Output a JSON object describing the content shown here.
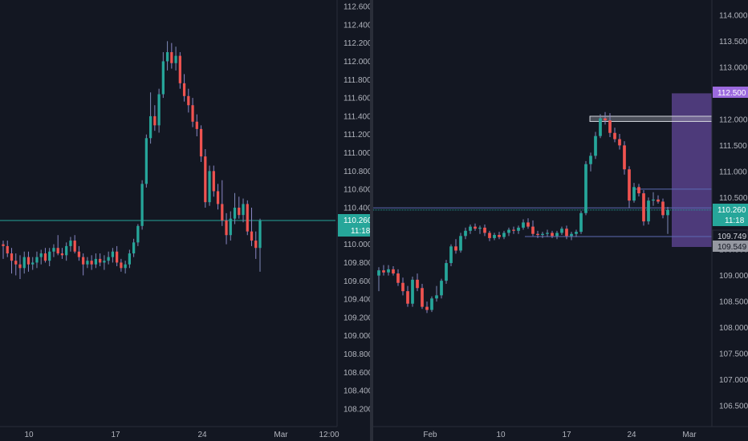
{
  "colors": {
    "background": "#131722",
    "axis_text": "#b2b5be",
    "divider": "#2a2e39",
    "up": "#26a69a",
    "down": "#ef5350",
    "wick_up": "#7e8ab8",
    "wick_down": "#8a86c4",
    "price_line": "#26a69a",
    "badge_bg": "#26a69a",
    "badge_text": "#ffffff",
    "zone_fill": "#7e57c2",
    "zone_label_bg": "#9c6ade",
    "level_line": "#5d6bb4",
    "gray_badge": "#9598a1"
  },
  "chart_data": [
    {
      "type": "candlestick",
      "panel": "left",
      "y_axis": {
        "min": 108.0,
        "max": 112.6,
        "ticks": [
          "112.600",
          "112.400",
          "112.200",
          "112.000",
          "111.800",
          "111.600",
          "111.400",
          "111.200",
          "111.000",
          "110.800",
          "110.600",
          "110.400",
          "110.200",
          "110.000",
          "109.800",
          "109.600",
          "109.400",
          "109.200",
          "109.000",
          "108.800",
          "108.600",
          "108.400",
          "108.200"
        ]
      },
      "x_axis": {
        "ticks": [
          "10",
          "17",
          "24",
          "Mar",
          "12:00"
        ]
      },
      "last_price": {
        "value": 110.26,
        "label": "110.260",
        "countdown": "11:18"
      },
      "series": [
        {
          "o": 110.0,
          "h": 110.04,
          "l": 109.84,
          "c": 109.98
        },
        {
          "o": 109.98,
          "h": 110.04,
          "l": 109.86,
          "c": 109.9
        },
        {
          "o": 109.9,
          "h": 109.96,
          "l": 109.68,
          "c": 109.82
        },
        {
          "o": 109.82,
          "h": 109.9,
          "l": 109.66,
          "c": 109.78
        },
        {
          "o": 109.78,
          "h": 109.88,
          "l": 109.62,
          "c": 109.74
        },
        {
          "o": 109.74,
          "h": 109.92,
          "l": 109.68,
          "c": 109.86
        },
        {
          "o": 109.86,
          "h": 109.92,
          "l": 109.7,
          "c": 109.78
        },
        {
          "o": 109.78,
          "h": 109.86,
          "l": 109.72,
          "c": 109.8
        },
        {
          "o": 109.8,
          "h": 109.92,
          "l": 109.74,
          "c": 109.86
        },
        {
          "o": 109.86,
          "h": 109.94,
          "l": 109.78,
          "c": 109.9
        },
        {
          "o": 109.9,
          "h": 109.96,
          "l": 109.8,
          "c": 109.82
        },
        {
          "o": 109.82,
          "h": 109.96,
          "l": 109.76,
          "c": 109.92
        },
        {
          "o": 109.92,
          "h": 110.0,
          "l": 109.86,
          "c": 109.96
        },
        {
          "o": 109.96,
          "h": 110.1,
          "l": 109.88,
          "c": 109.9
        },
        {
          "o": 109.9,
          "h": 109.96,
          "l": 109.84,
          "c": 109.88
        },
        {
          "o": 109.88,
          "h": 110.02,
          "l": 109.82,
          "c": 109.98
        },
        {
          "o": 109.98,
          "h": 110.08,
          "l": 109.92,
          "c": 110.04
        },
        {
          "o": 110.04,
          "h": 110.1,
          "l": 109.9,
          "c": 109.92
        },
        {
          "o": 109.92,
          "h": 109.98,
          "l": 109.82,
          "c": 109.86
        },
        {
          "o": 109.86,
          "h": 109.9,
          "l": 109.66,
          "c": 109.78
        },
        {
          "o": 109.78,
          "h": 109.86,
          "l": 109.74,
          "c": 109.82
        },
        {
          "o": 109.82,
          "h": 109.88,
          "l": 109.72,
          "c": 109.78
        },
        {
          "o": 109.78,
          "h": 109.9,
          "l": 109.74,
          "c": 109.84
        },
        {
          "o": 109.84,
          "h": 109.9,
          "l": 109.76,
          "c": 109.8
        },
        {
          "o": 109.8,
          "h": 109.88,
          "l": 109.72,
          "c": 109.82
        },
        {
          "o": 109.82,
          "h": 109.92,
          "l": 109.78,
          "c": 109.86
        },
        {
          "o": 109.86,
          "h": 109.96,
          "l": 109.8,
          "c": 109.92
        },
        {
          "o": 109.92,
          "h": 109.98,
          "l": 109.76,
          "c": 109.8
        },
        {
          "o": 109.8,
          "h": 109.84,
          "l": 109.7,
          "c": 109.74
        },
        {
          "o": 109.74,
          "h": 109.82,
          "l": 109.68,
          "c": 109.78
        },
        {
          "o": 109.78,
          "h": 109.94,
          "l": 109.74,
          "c": 109.9
        },
        {
          "o": 109.9,
          "h": 110.06,
          "l": 109.86,
          "c": 110.02
        },
        {
          "o": 110.02,
          "h": 110.22,
          "l": 109.98,
          "c": 110.2
        },
        {
          "o": 110.2,
          "h": 110.7,
          "l": 110.16,
          "c": 110.66
        },
        {
          "o": 110.66,
          "h": 111.2,
          "l": 110.62,
          "c": 111.16
        },
        {
          "o": 111.16,
          "h": 111.66,
          "l": 111.1,
          "c": 111.4
        },
        {
          "o": 111.4,
          "h": 111.52,
          "l": 111.24,
          "c": 111.3
        },
        {
          "o": 111.3,
          "h": 111.7,
          "l": 111.22,
          "c": 111.64
        },
        {
          "o": 111.64,
          "h": 112.1,
          "l": 111.6,
          "c": 112.0
        },
        {
          "o": 112.0,
          "h": 112.22,
          "l": 111.9,
          "c": 112.1
        },
        {
          "o": 112.1,
          "h": 112.2,
          "l": 111.92,
          "c": 111.98
        },
        {
          "o": 111.98,
          "h": 112.16,
          "l": 111.9,
          "c": 112.06
        },
        {
          "o": 112.06,
          "h": 112.1,
          "l": 111.7,
          "c": 111.76
        },
        {
          "o": 111.76,
          "h": 111.86,
          "l": 111.56,
          "c": 111.62
        },
        {
          "o": 111.62,
          "h": 111.7,
          "l": 111.44,
          "c": 111.52
        },
        {
          "o": 111.52,
          "h": 111.6,
          "l": 111.28,
          "c": 111.34
        },
        {
          "o": 111.34,
          "h": 111.42,
          "l": 111.18,
          "c": 111.26
        },
        {
          "o": 111.26,
          "h": 111.3,
          "l": 110.9,
          "c": 110.96
        },
        {
          "o": 110.96,
          "h": 111.04,
          "l": 110.4,
          "c": 110.46
        },
        {
          "o": 110.46,
          "h": 110.86,
          "l": 110.42,
          "c": 110.8
        },
        {
          "o": 110.8,
          "h": 110.86,
          "l": 110.52,
          "c": 110.58
        },
        {
          "o": 110.58,
          "h": 110.66,
          "l": 110.38,
          "c": 110.44
        },
        {
          "o": 110.44,
          "h": 110.7,
          "l": 110.2,
          "c": 110.26
        },
        {
          "o": 110.26,
          "h": 110.34,
          "l": 110.0,
          "c": 110.1
        },
        {
          "o": 110.1,
          "h": 110.36,
          "l": 110.04,
          "c": 110.28
        },
        {
          "o": 110.28,
          "h": 110.56,
          "l": 110.22,
          "c": 110.4
        },
        {
          "o": 110.4,
          "h": 110.52,
          "l": 110.28,
          "c": 110.32
        },
        {
          "o": 110.32,
          "h": 110.5,
          "l": 110.24,
          "c": 110.44
        },
        {
          "o": 110.44,
          "h": 110.48,
          "l": 110.1,
          "c": 110.14
        },
        {
          "o": 110.14,
          "h": 110.4,
          "l": 109.98,
          "c": 110.04
        },
        {
          "o": 110.04,
          "h": 110.14,
          "l": 109.84,
          "c": 109.96
        },
        {
          "o": 109.96,
          "h": 110.28,
          "l": 109.7,
          "c": 110.26
        }
      ]
    },
    {
      "type": "candlestick",
      "panel": "right",
      "y_axis": {
        "min": 106.0,
        "max": 114.2,
        "ticks": [
          "114.000",
          "113.500",
          "113.000",
          "112.500",
          "112.000",
          "111.500",
          "111.000",
          "110.500",
          "110.000",
          "109.500",
          "109.000",
          "108.500",
          "108.000",
          "107.500",
          "107.000",
          "106.500"
        ]
      },
      "x_axis": {
        "ticks": [
          "Feb",
          "10",
          "17",
          "24",
          "Mar"
        ]
      },
      "last_price": {
        "value": 110.26,
        "label": "110.260",
        "countdown": "11:18"
      },
      "zone": {
        "top": 112.5,
        "bottom": 109.549,
        "top_label": "112.500",
        "bottom_label": "109.549"
      },
      "levels": [
        {
          "value": 112.06,
          "top": 112.06,
          "bottom": 111.96,
          "kind": "supply_box"
        },
        {
          "value": 110.66,
          "kind": "line"
        },
        {
          "value": 110.3,
          "kind": "line"
        },
        {
          "value": 109.749,
          "label": "109.749",
          "kind": "line"
        }
      ],
      "series": [
        {
          "o": 109.0,
          "h": 109.16,
          "l": 108.7,
          "c": 109.1
        },
        {
          "o": 109.1,
          "h": 109.2,
          "l": 109.0,
          "c": 109.06
        },
        {
          "o": 109.06,
          "h": 109.2,
          "l": 109.0,
          "c": 109.12
        },
        {
          "o": 109.12,
          "h": 109.18,
          "l": 109.0,
          "c": 109.04
        },
        {
          "o": 109.04,
          "h": 109.12,
          "l": 108.8,
          "c": 108.86
        },
        {
          "o": 108.86,
          "h": 108.96,
          "l": 108.62,
          "c": 108.7
        },
        {
          "o": 108.7,
          "h": 108.8,
          "l": 108.4,
          "c": 108.46
        },
        {
          "o": 108.46,
          "h": 108.98,
          "l": 108.4,
          "c": 108.92
        },
        {
          "o": 108.92,
          "h": 109.04,
          "l": 108.7,
          "c": 108.76
        },
        {
          "o": 108.76,
          "h": 108.84,
          "l": 108.36,
          "c": 108.4
        },
        {
          "o": 108.4,
          "h": 108.5,
          "l": 108.28,
          "c": 108.34
        },
        {
          "o": 108.34,
          "h": 108.6,
          "l": 108.3,
          "c": 108.56
        },
        {
          "o": 108.56,
          "h": 108.8,
          "l": 108.5,
          "c": 108.62
        },
        {
          "o": 108.62,
          "h": 108.94,
          "l": 108.56,
          "c": 108.9
        },
        {
          "o": 108.9,
          "h": 109.3,
          "l": 108.84,
          "c": 109.24
        },
        {
          "o": 109.24,
          "h": 109.6,
          "l": 109.18,
          "c": 109.56
        },
        {
          "o": 109.56,
          "h": 109.7,
          "l": 109.42,
          "c": 109.48
        },
        {
          "o": 109.48,
          "h": 109.82,
          "l": 109.44,
          "c": 109.76
        },
        {
          "o": 109.76,
          "h": 109.92,
          "l": 109.7,
          "c": 109.86
        },
        {
          "o": 109.86,
          "h": 109.98,
          "l": 109.8,
          "c": 109.94
        },
        {
          "o": 109.94,
          "h": 110.0,
          "l": 109.86,
          "c": 109.9
        },
        {
          "o": 109.9,
          "h": 109.96,
          "l": 109.8,
          "c": 109.92
        },
        {
          "o": 109.92,
          "h": 109.98,
          "l": 109.76,
          "c": 109.82
        },
        {
          "o": 109.82,
          "h": 109.86,
          "l": 109.66,
          "c": 109.72
        },
        {
          "o": 109.72,
          "h": 109.82,
          "l": 109.68,
          "c": 109.78
        },
        {
          "o": 109.78,
          "h": 109.84,
          "l": 109.7,
          "c": 109.74
        },
        {
          "o": 109.74,
          "h": 109.86,
          "l": 109.7,
          "c": 109.82
        },
        {
          "o": 109.82,
          "h": 109.92,
          "l": 109.76,
          "c": 109.88
        },
        {
          "o": 109.88,
          "h": 109.94,
          "l": 109.8,
          "c": 109.86
        },
        {
          "o": 109.86,
          "h": 109.96,
          "l": 109.8,
          "c": 109.92
        },
        {
          "o": 109.92,
          "h": 110.08,
          "l": 109.88,
          "c": 110.02
        },
        {
          "o": 110.02,
          "h": 110.1,
          "l": 109.9,
          "c": 109.94
        },
        {
          "o": 109.94,
          "h": 110.06,
          "l": 109.76,
          "c": 109.8
        },
        {
          "o": 109.8,
          "h": 109.86,
          "l": 109.72,
          "c": 109.78
        },
        {
          "o": 109.78,
          "h": 109.84,
          "l": 109.72,
          "c": 109.8
        },
        {
          "o": 109.8,
          "h": 109.88,
          "l": 109.74,
          "c": 109.82
        },
        {
          "o": 109.82,
          "h": 109.86,
          "l": 109.72,
          "c": 109.76
        },
        {
          "o": 109.76,
          "h": 109.86,
          "l": 109.7,
          "c": 109.82
        },
        {
          "o": 109.82,
          "h": 109.94,
          "l": 109.78,
          "c": 109.9
        },
        {
          "o": 109.9,
          "h": 109.96,
          "l": 109.7,
          "c": 109.76
        },
        {
          "o": 109.76,
          "h": 109.84,
          "l": 109.68,
          "c": 109.8
        },
        {
          "o": 109.8,
          "h": 109.88,
          "l": 109.74,
          "c": 109.84
        },
        {
          "o": 109.84,
          "h": 110.24,
          "l": 109.8,
          "c": 110.2
        },
        {
          "o": 110.2,
          "h": 111.2,
          "l": 110.16,
          "c": 111.14
        },
        {
          "o": 111.14,
          "h": 111.36,
          "l": 111.0,
          "c": 111.3
        },
        {
          "o": 111.3,
          "h": 111.76,
          "l": 111.24,
          "c": 111.68
        },
        {
          "o": 111.68,
          "h": 112.1,
          "l": 111.64,
          "c": 112.02
        },
        {
          "o": 112.02,
          "h": 112.14,
          "l": 111.9,
          "c": 111.98
        },
        {
          "o": 111.98,
          "h": 112.12,
          "l": 111.66,
          "c": 111.74
        },
        {
          "o": 111.74,
          "h": 111.84,
          "l": 111.56,
          "c": 111.62
        },
        {
          "o": 111.62,
          "h": 111.72,
          "l": 111.42,
          "c": 111.5
        },
        {
          "o": 111.5,
          "h": 111.58,
          "l": 110.94,
          "c": 111.04
        },
        {
          "o": 111.04,
          "h": 111.1,
          "l": 110.3,
          "c": 110.44
        },
        {
          "o": 110.44,
          "h": 110.78,
          "l": 110.4,
          "c": 110.7
        },
        {
          "o": 110.7,
          "h": 110.76,
          "l": 110.52,
          "c": 110.58
        },
        {
          "o": 110.58,
          "h": 110.64,
          "l": 109.96,
          "c": 110.04
        },
        {
          "o": 110.04,
          "h": 110.5,
          "l": 109.98,
          "c": 110.44
        },
        {
          "o": 110.44,
          "h": 110.6,
          "l": 110.34,
          "c": 110.46
        },
        {
          "o": 110.46,
          "h": 110.54,
          "l": 110.38,
          "c": 110.42
        },
        {
          "o": 110.42,
          "h": 110.48,
          "l": 110.1,
          "c": 110.16
        },
        {
          "o": 110.16,
          "h": 110.32,
          "l": 109.8,
          "c": 110.26
        }
      ]
    }
  ]
}
